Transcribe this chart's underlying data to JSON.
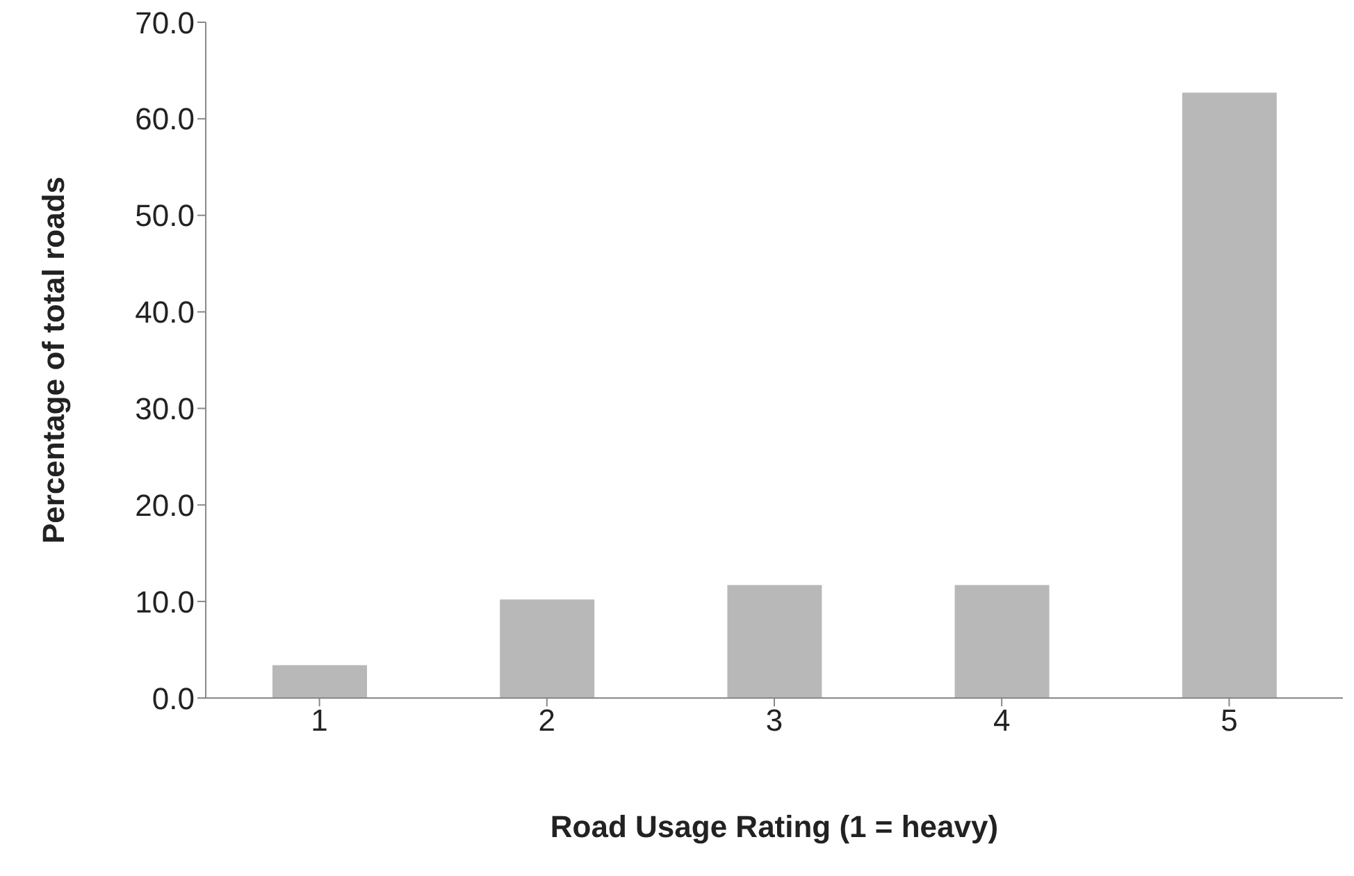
{
  "chart_data": {
    "type": "bar",
    "xlabel": "Road Usage Rating (1 = heavy)",
    "ylabel": "Percentage of total roads",
    "categories": [
      "1",
      "2",
      "3",
      "4",
      "5"
    ],
    "values": [
      3.4,
      10.2,
      11.7,
      11.7,
      62.7
    ],
    "color": "#b8b8b8",
    "ylim": [
      0,
      70
    ],
    "yticks": [
      {
        "value": 0,
        "label": "0.0"
      },
      {
        "value": 10,
        "label": "10.0"
      },
      {
        "value": 20,
        "label": "20.0"
      },
      {
        "value": 30,
        "label": "30.0"
      },
      {
        "value": 40,
        "label": "40.0"
      },
      {
        "value": 50,
        "label": "50.0"
      },
      {
        "value": 60,
        "label": "60.0"
      },
      {
        "value": 70,
        "label": "70.0"
      }
    ],
    "grid": false,
    "legend": false
  }
}
